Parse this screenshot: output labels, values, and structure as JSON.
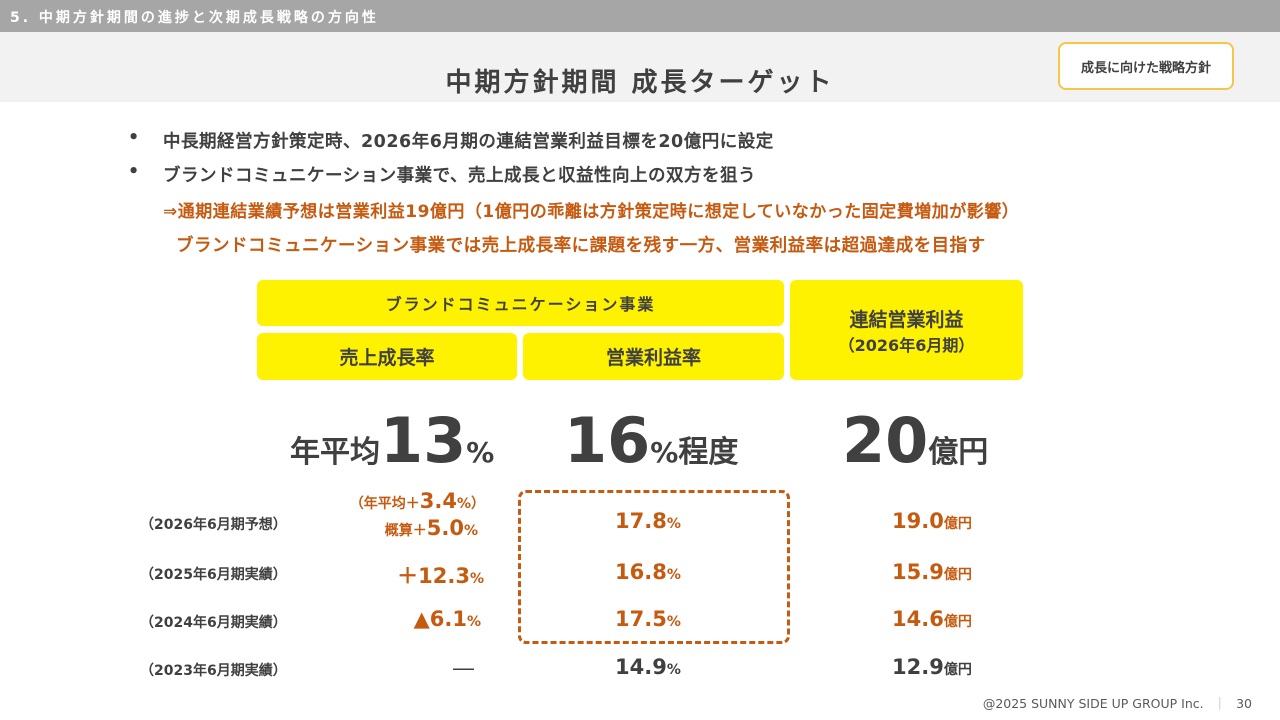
{
  "header": {
    "section_title": "5. 中期方針期間の進捗と次期成長戦略の方向性",
    "page_title": "中期方針期間 成長ターゲット",
    "badge": "成長に向けた戦略方針"
  },
  "bullets": [
    {
      "mark": "•",
      "text": "中長期経営方針策定時、2026年6月期の連結営業利益目標を20億円に設定"
    },
    {
      "mark": "•",
      "text": "ブランドコミュニケーション事業で、売上成長と収益性向上の双方を狙う"
    }
  ],
  "highlights": [
    "⇒通期連結業績予想は営業利益19億円（1億円の乖離は方針策定時に想定していなかった固定費増加が影響）",
    "ブランドコミュニケーション事業では売上成長率に課題を残す一方、営業利益率は超過達成を目指す"
  ],
  "table_headers": {
    "segment": "ブランドコミュニケーション事業",
    "sales_growth": "売上成長率",
    "op_margin": "営業利益率",
    "consolidated_line1": "連結営業利益",
    "consolidated_line2": "（2026年6月期）"
  },
  "targets": {
    "sales_growth": {
      "prefix": "年平均",
      "value": "13",
      "unit": "%"
    },
    "op_margin": {
      "value": "16",
      "unit": "%",
      "suffix": "程度"
    },
    "consolidated": {
      "value": "20",
      "unit": "億円"
    }
  },
  "rows": [
    {
      "label": "（2026年6月期予想）",
      "growth_line1_prefix": "（年平均＋",
      "growth_line1_value": "3.4",
      "growth_line1_suffix": "%）",
      "growth_line2_prefix": "概算＋",
      "growth_line2_value": "5.0",
      "growth_line2_suffix": "%",
      "margin_value": "17.8",
      "margin_unit": "%",
      "op_value": "19.0",
      "op_unit": "億円"
    },
    {
      "label": "（2025年6月期実績）",
      "growth_value": "＋12.3",
      "growth_unit": "%",
      "margin_value": "16.8",
      "margin_unit": "%",
      "op_value": "15.9",
      "op_unit": "億円"
    },
    {
      "label": "（2024年6月期実績）",
      "growth_value": "▲6.1",
      "growth_unit": "%",
      "margin_value": "17.5",
      "margin_unit": "%",
      "op_value": "14.6",
      "op_unit": "億円"
    },
    {
      "label": "（2023年6月期実績）",
      "growth_value": "―",
      "margin_value": "14.9",
      "margin_unit": "%",
      "op_value": "12.9",
      "op_unit": "億円"
    }
  ],
  "footer": {
    "copyright": "@2025 SUNNY SIDE UP GROUP Inc.",
    "separator": "｜",
    "page_number": "30"
  },
  "colors": {
    "accent_yellow": "#fff200",
    "accent_orange": "#c55a11",
    "text_dark": "#404040",
    "header_gray": "#a6a6a6"
  }
}
